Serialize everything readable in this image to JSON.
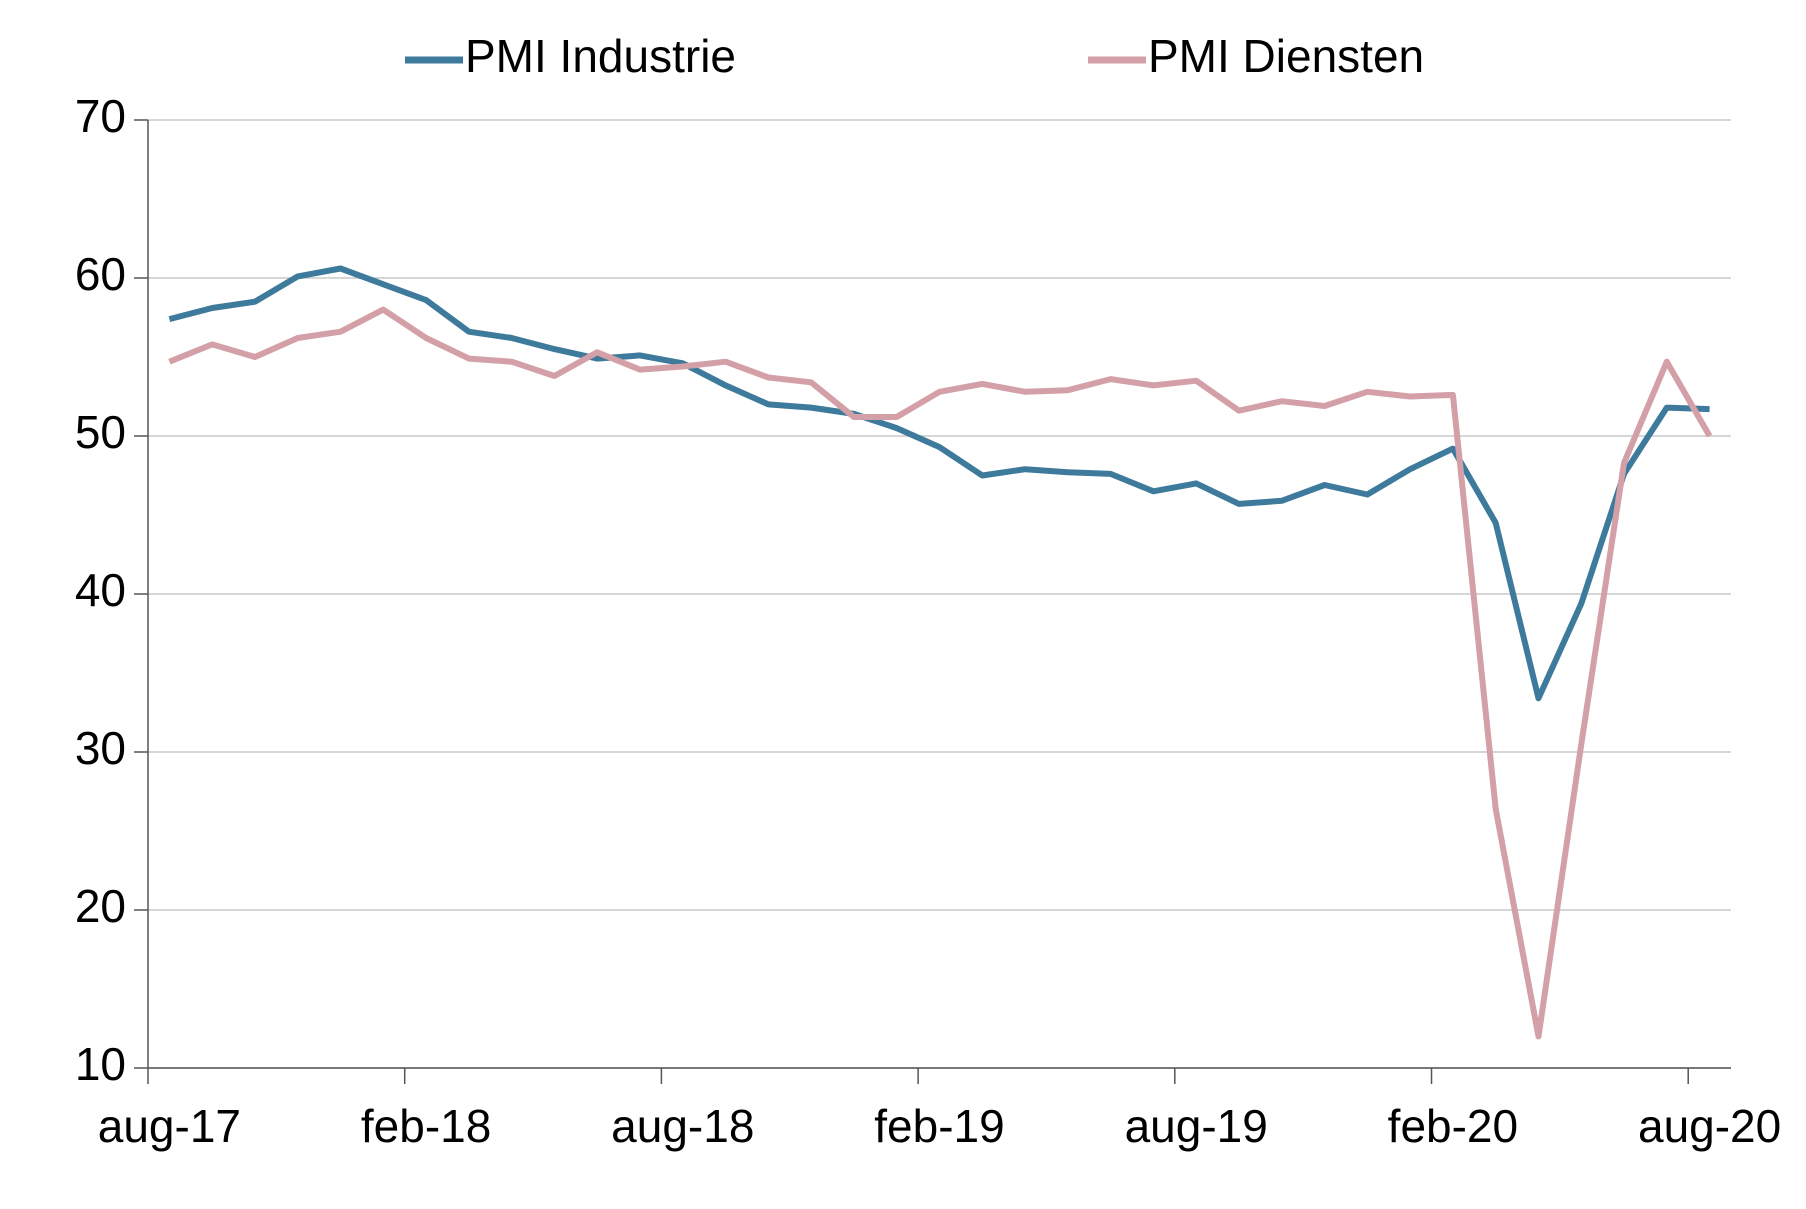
{
  "chart_data": {
    "type": "line",
    "categories": [
      "aug-17",
      null,
      null,
      null,
      null,
      null,
      "feb-18",
      null,
      null,
      null,
      null,
      null,
      "aug-18",
      null,
      null,
      null,
      null,
      null,
      "feb-19",
      null,
      null,
      null,
      null,
      null,
      "aug-19",
      null,
      null,
      null,
      null,
      null,
      "feb-20",
      null,
      null,
      null,
      null,
      null,
      "aug-20"
    ],
    "series": [
      {
        "name": "PMI Industrie",
        "color": "#3e7a9c",
        "values": [
          57.4,
          58.1,
          58.5,
          60.1,
          60.6,
          59.6,
          58.6,
          56.6,
          56.2,
          55.5,
          54.9,
          55.1,
          54.6,
          53.2,
          52.0,
          51.8,
          51.4,
          50.5,
          49.3,
          47.5,
          47.9,
          47.7,
          47.6,
          46.5,
          47.0,
          45.7,
          45.9,
          46.9,
          46.3,
          47.9,
          49.2,
          44.5,
          33.4,
          39.4,
          47.6,
          51.8,
          51.7
        ]
      },
      {
        "name": "PMI Diensten",
        "color": "#d4a0a8",
        "values": [
          54.7,
          55.8,
          55.0,
          56.2,
          56.6,
          58.0,
          56.2,
          54.9,
          54.7,
          53.8,
          55.3,
          54.2,
          54.4,
          54.7,
          53.7,
          53.4,
          51.2,
          51.2,
          52.8,
          53.3,
          52.8,
          52.9,
          53.6,
          53.2,
          53.5,
          51.6,
          52.2,
          51.9,
          52.8,
          52.5,
          52.6,
          26.4,
          12.0,
          30.5,
          48.3,
          54.7,
          50.0
        ]
      }
    ],
    "ylim": [
      10,
      70
    ],
    "yticks": [
      10,
      20,
      30,
      40,
      50,
      60,
      70
    ],
    "grid": true,
    "legend": "top"
  }
}
